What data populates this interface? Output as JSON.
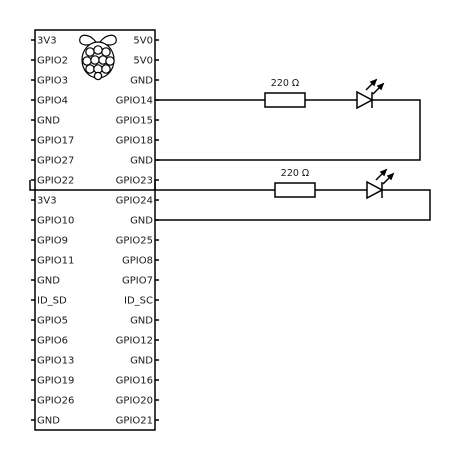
{
  "board": {
    "logo": "raspberry-pi",
    "left_pins": [
      "3V3",
      "GPIO2",
      "GPIO3",
      "GPIO4",
      "GND",
      "GPIO17",
      "GPIO27",
      "GPIO22",
      "3V3",
      "GPIO10",
      "GPIO9",
      "GPIO11",
      "GND",
      "ID_SD",
      "GPIO5",
      "GPIO6",
      "GPIO13",
      "GPIO19",
      "GPIO26",
      "GND"
    ],
    "right_pins": [
      "5V0",
      "5V0",
      "GND",
      "GPIO14",
      "GPIO15",
      "GPIO18",
      "GND",
      "GPIO23",
      "GPIO24",
      "GND",
      "GPIO25",
      "GPIO8",
      "GPIO7",
      "ID_SC",
      "GND",
      "GPIO12",
      "GND",
      "GPIO16",
      "GPIO20",
      "GPIO21"
    ]
  },
  "circuits": [
    {
      "from_pin": "GPIO14",
      "to_pin": "GND",
      "resistor_label": "220 Ω",
      "component": "led"
    },
    {
      "from_pin": "GPIO23",
      "to_pin": "GND",
      "resistor_label": "220 Ω",
      "component": "led"
    }
  ]
}
